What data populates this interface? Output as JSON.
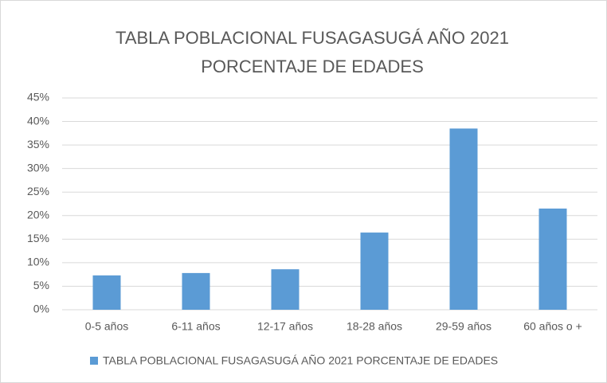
{
  "chart_data": {
    "type": "bar",
    "title": "TABLA POBLACIONAL FUSAGASUGÁ AÑO 2021 PORCENTAJE DE EDADES",
    "categories": [
      "0-5 años",
      "6-11 años",
      "12-17 años",
      "18-28 años",
      "29-59 años",
      "60 años o +"
    ],
    "series": [
      {
        "name": "TABLA POBLACIONAL FUSAGASUGÁ AÑO 2021 PORCENTAJE DE EDADES",
        "color": "#5b9bd5",
        "values": [
          7.3,
          7.8,
          8.6,
          16.4,
          38.5,
          21.5
        ]
      }
    ],
    "ylim": [
      0,
      45
    ],
    "yticks": [
      {
        "value": 0,
        "label": "0%"
      },
      {
        "value": 5,
        "label": "5%"
      },
      {
        "value": 10,
        "label": "10%"
      },
      {
        "value": 15,
        "label": "15%"
      },
      {
        "value": 20,
        "label": "20%"
      },
      {
        "value": 25,
        "label": "25%"
      },
      {
        "value": 30,
        "label": "30%"
      },
      {
        "value": 35,
        "label": "35%"
      },
      {
        "value": 40,
        "label": "40%"
      },
      {
        "value": 45,
        "label": "45%"
      }
    ],
    "grid": true,
    "legend": "bottom"
  }
}
